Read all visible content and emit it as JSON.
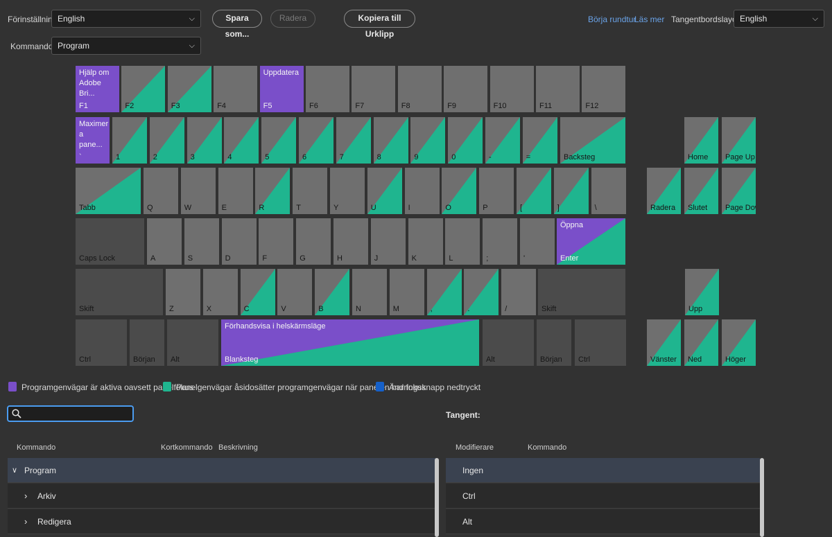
{
  "header": {
    "preset_label": "Förinställning:",
    "preset_value": "English",
    "save_as": "Spara som...",
    "delete": "Radera",
    "copy": "Kopiera till Urklipp",
    "tour": "Börja rundtur",
    "learn": "Läs mer",
    "layout_label": "Tangentbordslayout:",
    "layout_value": "English",
    "commands_label": "Kommandon:",
    "commands_value": "Program"
  },
  "colors": {
    "app": "#7a4fc9",
    "panel": "#1fb58f",
    "modifier": "#1560c9"
  },
  "keys": {
    "f1": {
      "label": "F1",
      "cmd": "Hjälp om Adobe Bri..."
    },
    "f2": {
      "label": "F2"
    },
    "f3": {
      "label": "F3"
    },
    "f4": {
      "label": "F4"
    },
    "f5": {
      "label": "F5",
      "cmd": "Uppdatera"
    },
    "f6": {
      "label": "F6"
    },
    "f7": {
      "label": "F7"
    },
    "f8": {
      "label": "F8"
    },
    "f9": {
      "label": "F9"
    },
    "f10": {
      "label": "F10"
    },
    "f11": {
      "label": "F11"
    },
    "f12": {
      "label": "F12"
    },
    "tilde": {
      "label": "`",
      "cmd": "Maximer a pane..."
    },
    "n1": {
      "label": "1"
    },
    "n2": {
      "label": "2"
    },
    "n3": {
      "label": "3"
    },
    "n4": {
      "label": "4"
    },
    "n5": {
      "label": "5"
    },
    "n6": {
      "label": "6"
    },
    "n7": {
      "label": "7"
    },
    "n8": {
      "label": "8"
    },
    "n9": {
      "label": "9"
    },
    "n0": {
      "label": "0"
    },
    "minus": {
      "label": "-"
    },
    "equal": {
      "label": "="
    },
    "backspace": {
      "label": "Backsteg"
    },
    "home": {
      "label": "Home"
    },
    "pageup": {
      "label": "Page Up"
    },
    "tab": {
      "label": "Tabb"
    },
    "q": {
      "label": "Q"
    },
    "w": {
      "label": "W"
    },
    "e": {
      "label": "E"
    },
    "r": {
      "label": "R"
    },
    "t": {
      "label": "T"
    },
    "y": {
      "label": "Y"
    },
    "u": {
      "label": "U"
    },
    "i": {
      "label": "I"
    },
    "o": {
      "label": "O"
    },
    "p": {
      "label": "P"
    },
    "lbracket": {
      "label": "["
    },
    "rbracket": {
      "label": "]"
    },
    "backslash": {
      "label": "\\"
    },
    "delete": {
      "label": "Radera"
    },
    "end": {
      "label": "Slutet"
    },
    "pagedown": {
      "label": "Page Down"
    },
    "capslock": {
      "label": "Caps Lock"
    },
    "a": {
      "label": "A"
    },
    "s": {
      "label": "S"
    },
    "d": {
      "label": "D"
    },
    "f": {
      "label": "F"
    },
    "g": {
      "label": "G"
    },
    "h": {
      "label": "H"
    },
    "j": {
      "label": "J"
    },
    "k": {
      "label": "K"
    },
    "l": {
      "label": "L"
    },
    "semicolon": {
      "label": ";"
    },
    "quote": {
      "label": "'"
    },
    "enter": {
      "label": "Enter",
      "cmd": "Öppna"
    },
    "lshift": {
      "label": "Skift"
    },
    "z": {
      "label": "Z"
    },
    "x": {
      "label": "X"
    },
    "c": {
      "label": "C"
    },
    "v": {
      "label": "V"
    },
    "b": {
      "label": "B"
    },
    "n": {
      "label": "N"
    },
    "m": {
      "label": "M"
    },
    "comma": {
      "label": ","
    },
    "period": {
      "label": "."
    },
    "slash": {
      "label": "/"
    },
    "rshift": {
      "label": "Skift"
    },
    "up": {
      "label": "Upp"
    },
    "lctrl": {
      "label": "Ctrl"
    },
    "lstart": {
      "label": "Början"
    },
    "lalt": {
      "label": "Alt"
    },
    "space": {
      "label": "Blanksteg",
      "cmd": "Förhandsvisa i helskärmsläge"
    },
    "ralt": {
      "label": "Alt"
    },
    "rstart": {
      "label": "Början"
    },
    "rctrl": {
      "label": "Ctrl"
    },
    "left": {
      "label": "Vänster"
    },
    "down": {
      "label": "Ned"
    },
    "right": {
      "label": "Höger"
    }
  },
  "legend": {
    "app": "Programgenvägar är aktiva oavsett panelfokus",
    "panel": "Panelgenvägar åsidosätter programgenvägar när panelen har fokus",
    "modifier": "Ändringsknapp nedtryckt"
  },
  "search": {
    "value": ""
  },
  "key_panel": {
    "title": "Tangent:",
    "col_modifier": "Modifierare",
    "col_command": "Kommando",
    "rows": [
      "Ingen",
      "Ctrl",
      "Alt"
    ]
  },
  "commands_table": {
    "col_command": "Kommando",
    "col_shortcut": "Kortkommando",
    "col_description": "Beskrivning",
    "rows": [
      "Program",
      "Arkiv",
      "Redigera"
    ]
  }
}
